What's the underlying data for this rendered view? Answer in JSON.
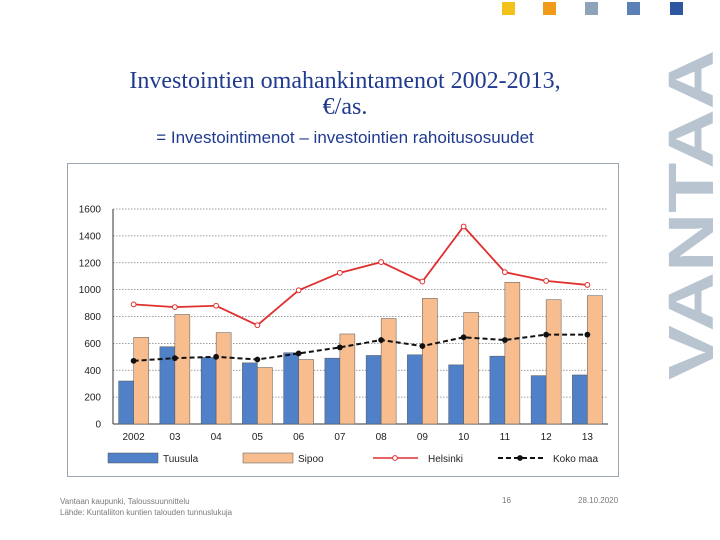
{
  "slide": {
    "title_line1": "Investointien omahankintamenot 2002-2013,",
    "title_line2": "€/as.",
    "subtitle": "= Investointimenot – investointien rahoitusosuudet",
    "brand": "VANTAA",
    "footer_source_line1": "Vantaan kaupunki, Taloussuunnittelu",
    "footer_source_line2": "Lähde: Kuntaliiton kuntien talouden tunnuslukuja",
    "page_number": "16",
    "date": "28.10.2020"
  },
  "colors": {
    "title": "#1f3a8f",
    "square_1": "#f2c21a",
    "square_2": "#f29a1a",
    "square_3": "#8ea3b8",
    "square_4": "#5b80b5",
    "square_5": "#2f56a0",
    "brand": "#b9c4d1"
  },
  "chart_data": {
    "type": "bar",
    "title": "",
    "xlabel": "",
    "ylabel": "",
    "categories": [
      "2002",
      "03",
      "04",
      "05",
      "06",
      "07",
      "08",
      "09",
      "10",
      "11",
      "12",
      "13"
    ],
    "ylim": [
      0,
      1600
    ],
    "yticks": [
      0,
      200,
      400,
      600,
      800,
      1000,
      1200,
      1400,
      1600
    ],
    "grid": true,
    "legend_position": "bottom",
    "series": [
      {
        "name": "Tuusula",
        "kind": "bar",
        "color": "#4f80c8",
        "values": [
          320,
          575,
          495,
          455,
          530,
          490,
          510,
          515,
          440,
          505,
          360,
          365
        ]
      },
      {
        "name": "Sipoo",
        "kind": "bar",
        "color": "#f7bd8f",
        "values": [
          645,
          815,
          680,
          420,
          480,
          670,
          785,
          935,
          830,
          1055,
          925,
          955
        ]
      },
      {
        "name": "Helsinki",
        "kind": "line",
        "color": "#e03030",
        "marker": "open-circle",
        "values": [
          890,
          870,
          880,
          735,
          995,
          1125,
          1205,
          1060,
          1470,
          1130,
          1065,
          1035
        ]
      },
      {
        "name": "Koko maa",
        "kind": "line",
        "color": "#111111",
        "marker": "filled-circle",
        "dashed": true,
        "values": [
          470,
          490,
          500,
          480,
          525,
          570,
          625,
          580,
          645,
          625,
          665,
          665
        ]
      }
    ]
  }
}
